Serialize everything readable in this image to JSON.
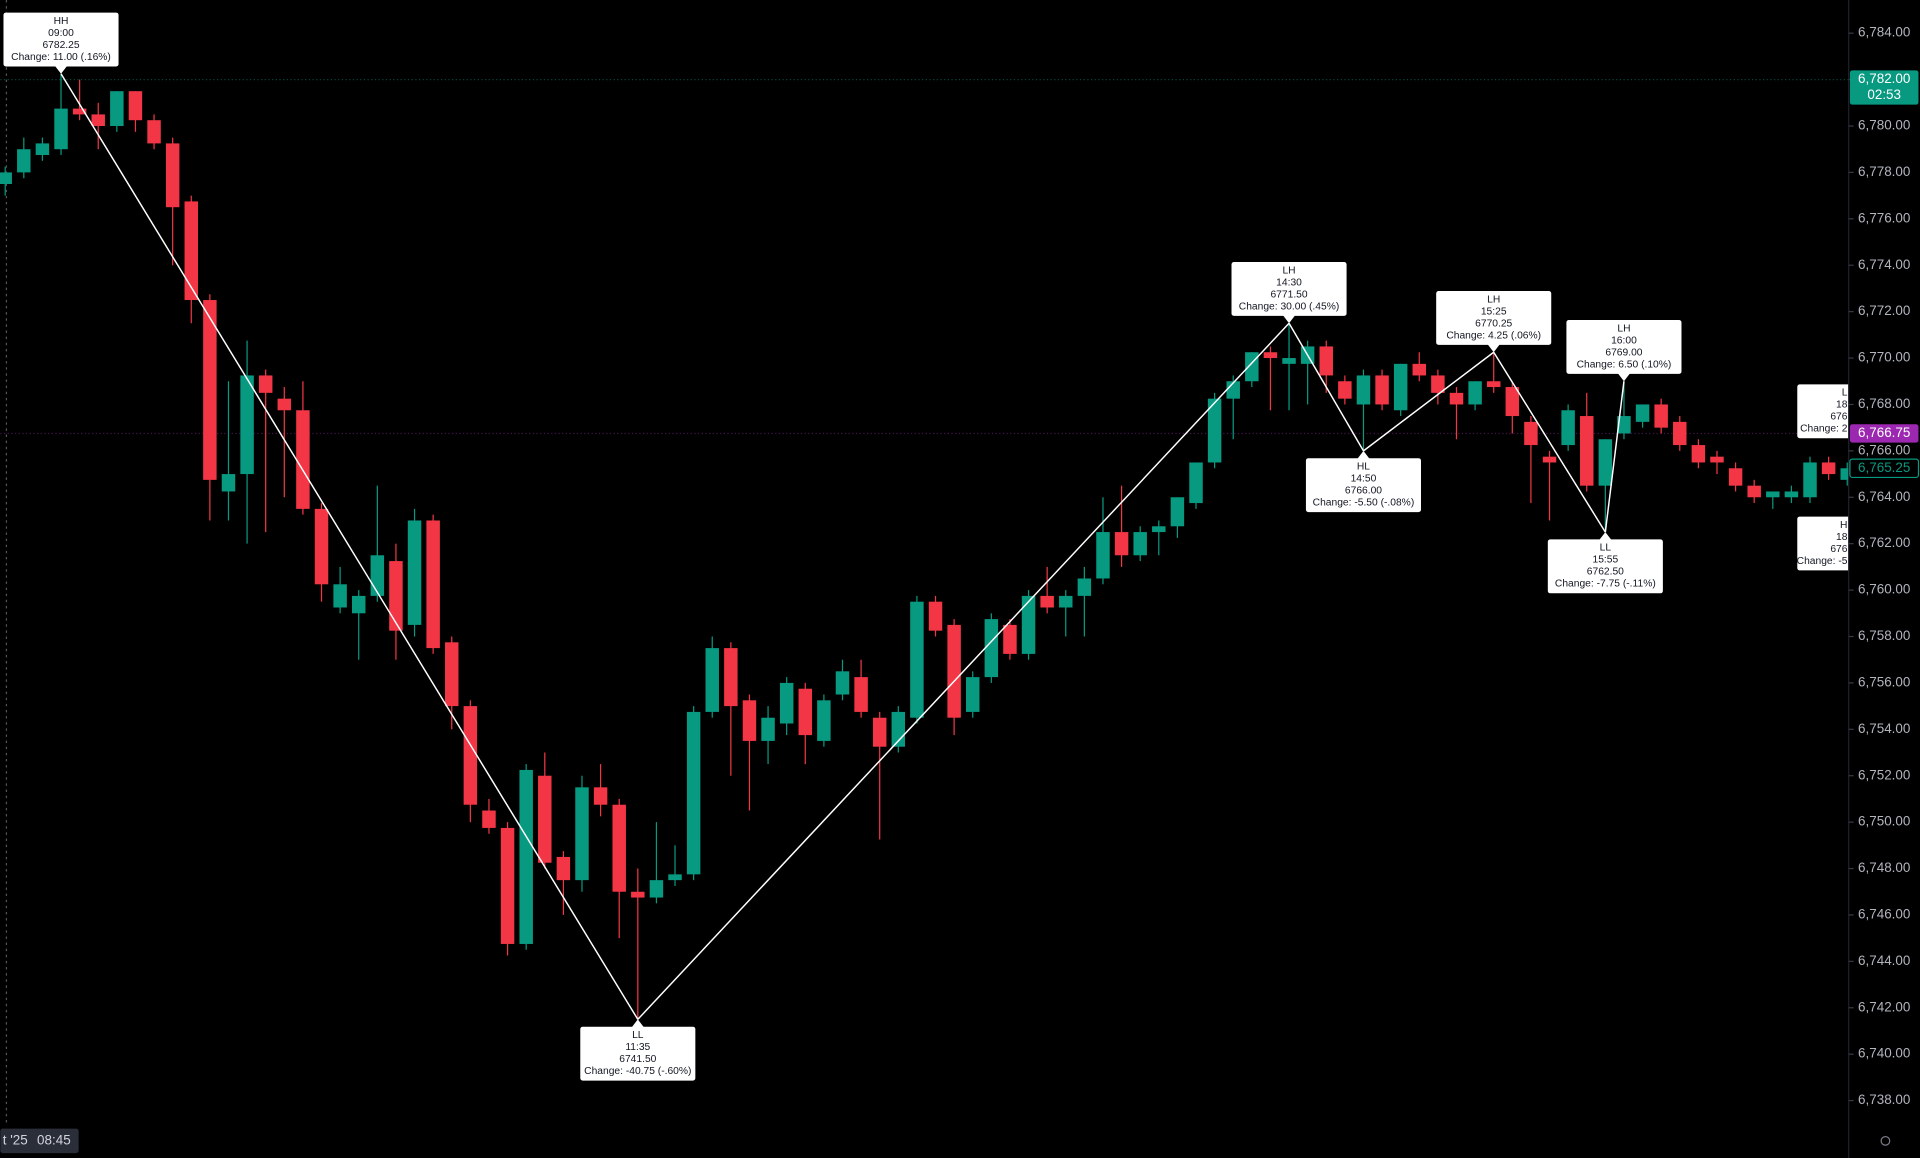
{
  "chart_data": {
    "type": "candlestick",
    "up_color": "#089981",
    "down_color": "#f23645",
    "line_color": "#ffffff",
    "ylim": [
      6736.95,
      6785.43
    ],
    "yticks": [
      {
        "value": 6784,
        "label": "6,784.00"
      },
      {
        "value": 6782,
        "label": "6,782.00"
      },
      {
        "value": 6780,
        "label": "6,780.00"
      },
      {
        "value": 6778,
        "label": "6,778.00"
      },
      {
        "value": 6776,
        "label": "6,776.00"
      },
      {
        "value": 6774,
        "label": "6,774.00"
      },
      {
        "value": 6772,
        "label": "6,772.00"
      },
      {
        "value": 6770,
        "label": "6,770.00"
      },
      {
        "value": 6768,
        "label": "6,768.00"
      },
      {
        "value": 6766,
        "label": "6,766.00"
      },
      {
        "value": 6764,
        "label": "6,764.00"
      },
      {
        "value": 6762,
        "label": "6,762.00"
      },
      {
        "value": 6760,
        "label": "6,760.00"
      },
      {
        "value": 6758,
        "label": "6,758.00"
      },
      {
        "value": 6756,
        "label": "6,756.00"
      },
      {
        "value": 6754,
        "label": "6,754.00"
      },
      {
        "value": 6752,
        "label": "6,752.00"
      },
      {
        "value": 6750,
        "label": "6,750.00"
      },
      {
        "value": 6748,
        "label": "6,748.00"
      },
      {
        "value": 6746,
        "label": "6,746.00"
      },
      {
        "value": 6744,
        "label": "6,744.00"
      },
      {
        "value": 6742,
        "label": "6,742.00"
      },
      {
        "value": 6740,
        "label": "6,740.00"
      },
      {
        "value": 6738,
        "label": "6,738.00"
      }
    ],
    "grid": false,
    "time_label": [
      "t '25",
      "08:45"
    ],
    "open": [
      6777.5,
      6778,
      6778.75,
      6779,
      6780.75,
      6780.5,
      6780,
      6781.5,
      6780.25,
      6779.25,
      6776.75,
      6772.5,
      6764.25,
      6765,
      6769.25,
      6768.25,
      6767.75,
      6763.5,
      6759.25,
      6759,
      6759.75,
      6761.25,
      6758.5,
      6763,
      6757.75,
      6755,
      6750.5,
      6749.75,
      6744.75,
      6752,
      6748.5,
      6747.5,
      6751.5,
      6750.75,
      6747,
      6746.75,
      6747.5,
      6747.75,
      6754.75,
      6757.5,
      6755.25,
      6753.5,
      6754.25,
      6755.75,
      6753.5,
      6755.5,
      6756.25,
      6754.5,
      6753.25,
      6754.5,
      6759.5,
      6758.5,
      6754.75,
      6756.25,
      6758.5,
      6757.25,
      6759.75,
      6759.25,
      6759.75,
      6760.5,
      6762.5,
      6761.5,
      6762.5,
      6762.75,
      6763.75,
      6765.5,
      6768.25,
      6769,
      6770.25,
      6769.75,
      6769.75,
      6770.5,
      6769,
      6768,
      6769.25,
      6767.75,
      6769.75,
      6769.25,
      6768.5,
      6768,
      6769,
      6768.75,
      6767.25,
      6765.75,
      6766.25,
      6767.5,
      6764.5,
      6766.75,
      6767.25,
      6768,
      6767.25,
      6766.25,
      6765.75,
      6765.25,
      6764.5,
      6764,
      6764,
      6764,
      6765.5,
      6764.75
    ],
    "high": [
      6778.25,
      6779.5,
      6779.5,
      6782.25,
      6782,
      6781,
      6781.5,
      6781.5,
      6780.5,
      6779.5,
      6777,
      6772.75,
      6769,
      6770.75,
      6769.5,
      6768.75,
      6769,
      6763.75,
      6761,
      6760,
      6764.5,
      6762,
      6763.5,
      6763.25,
      6758,
      6755.25,
      6751,
      6750,
      6752.5,
      6753,
      6748.75,
      6752,
      6752.5,
      6751,
      6748,
      6750,
      6749,
      6755,
      6758,
      6757.75,
      6755.5,
      6755,
      6756.25,
      6756,
      6755.5,
      6757,
      6757,
      6754.75,
      6755,
      6759.75,
      6759.75,
      6758.75,
      6756.5,
      6759,
      6758.75,
      6760,
      6761,
      6760,
      6761,
      6764,
      6764.5,
      6762.75,
      6763,
      6764,
      6765.5,
      6768.5,
      6769.25,
      6770.25,
      6770.5,
      6771.5,
      6770.75,
      6770.75,
      6769.25,
      6769.5,
      6769.5,
      6769.75,
      6770.25,
      6769.5,
      6768.75,
      6769,
      6770.25,
      6769,
      6767.5,
      6766,
      6768,
      6768.5,
      6766.5,
      6769,
      6768,
      6768.25,
      6767.5,
      6766.5,
      6766,
      6765.5,
      6764.75,
      6764.25,
      6764.5,
      6765.75,
      6765.75,
      6765.5
    ],
    "low": [
      6777,
      6777.75,
      6778.5,
      6778.75,
      6780.25,
      6779,
      6779.75,
      6779.75,
      6779,
      6774,
      6771.5,
      6763,
      6763,
      6762,
      6762.5,
      6764,
      6763.25,
      6759.5,
      6759,
      6757,
      6759.5,
      6757,
      6758,
      6757.25,
      6754,
      6750,
      6749.5,
      6744.25,
      6744.5,
      6748,
      6746,
      6747,
      6750.25,
      6745,
      6741.5,
      6746.5,
      6747.25,
      6747.5,
      6754.5,
      6752,
      6750.5,
      6752.5,
      6753.75,
      6752.5,
      6753.25,
      6755.25,
      6754.5,
      6749.25,
      6753,
      6754.25,
      6758,
      6753.75,
      6754.5,
      6756,
      6757,
      6757,
      6759,
      6758,
      6758,
      6760.25,
      6761,
      6761.25,
      6761.5,
      6762.25,
      6763.5,
      6765.25,
      6766.5,
      6768.75,
      6767.75,
      6767.75,
      6768,
      6768.5,
      6768,
      6766,
      6767.75,
      6767.5,
      6769,
      6768,
      6766.5,
      6767.75,
      6768.5,
      6766.75,
      6763.75,
      6763,
      6766,
      6764.25,
      6762.5,
      6766.5,
      6767,
      6766.75,
      6766,
      6765.25,
      6765,
      6764.25,
      6763.75,
      6763.5,
      6763.75,
      6763.75,
      6764.75,
      6764.5
    ],
    "close": [
      6778,
      6779,
      6779.25,
      6780.75,
      6780.5,
      6780,
      6781.5,
      6780.25,
      6779.25,
      6776.5,
      6772.5,
      6764.75,
      6765,
      6769.25,
      6768.5,
      6767.75,
      6763.5,
      6760.25,
      6760.25,
      6759.75,
      6761.5,
      6758.25,
      6763,
      6757.5,
      6755,
      6750.75,
      6749.75,
      6744.75,
      6752.25,
      6748.25,
      6747.5,
      6751.5,
      6750.75,
      6747,
      6746.75,
      6747.5,
      6747.75,
      6754.75,
      6757.5,
      6755,
      6753.5,
      6754.5,
      6756,
      6753.75,
      6755.25,
      6756.5,
      6754.75,
      6753.25,
      6754.75,
      6759.5,
      6758.25,
      6754.5,
      6756.25,
      6758.75,
      6757.25,
      6759.75,
      6759.25,
      6759.75,
      6760.5,
      6762.5,
      6761.5,
      6762.5,
      6762.75,
      6764,
      6765.5,
      6768.25,
      6769,
      6770.25,
      6770,
      6770,
      6770.5,
      6769.25,
      6768.25,
      6769.25,
      6768,
      6769.75,
      6769.25,
      6768.5,
      6768,
      6769,
      6768.75,
      6767.5,
      6766.25,
      6765.5,
      6767.75,
      6764.5,
      6766.5,
      6767.5,
      6768,
      6767,
      6766.25,
      6765.5,
      6765.5,
      6764.5,
      6764,
      6764.25,
      6764.25,
      6765.5,
      6765,
      6765.25
    ],
    "pivots": [
      {
        "label": "HH",
        "time": "09:00",
        "price": 6782.25,
        "price_label": "6782.25",
        "change": "Change: 11.00 (.16%)"
      },
      {
        "label": "LL",
        "time": "11:35",
        "price": 6741.5,
        "price_label": "6741.50",
        "change": "Change: -40.75 (-.60%)"
      },
      {
        "label": "LH",
        "time": "14:30",
        "price": 6771.5,
        "price_label": "6771.50",
        "change": "Change: 30.00 (.45%)"
      },
      {
        "label": "HL",
        "time": "14:50",
        "price": 6766,
        "price_label": "6766.00",
        "change": "Change: -5.50 (-.08%)"
      },
      {
        "label": "LH",
        "time": "15:25",
        "price": 6770.25,
        "price_label": "6770.25",
        "change": "Change: 4.25 (.06%)"
      },
      {
        "label": "LL",
        "time": "15:55",
        "price": 6762.5,
        "price_label": "6762.50",
        "change": "Change: -7.75 (-.11%)"
      },
      {
        "label": "LH",
        "time": "16:00",
        "price": 6769,
        "price_label": "6769.00",
        "change": "Change: 6.50 (.10%)"
      }
    ],
    "clipped_labels": [
      [
        "L",
        "18",
        "676",
        "Change: 2"
      ],
      [
        "H",
        "18",
        "676",
        "Change: -5"
      ]
    ],
    "price_markers": [
      {
        "value": 6782,
        "label": "6,782.00",
        "sub": "02:53",
        "color": "#089981",
        "style": "filled",
        "line": true
      },
      {
        "value": 6766.75,
        "label": "6,766.75",
        "color": "#9c27b0",
        "style": "filled",
        "line": true
      },
      {
        "value": 6765.25,
        "label": "6,765.25",
        "color": "#089981",
        "style": "outline",
        "line": false
      }
    ]
  }
}
